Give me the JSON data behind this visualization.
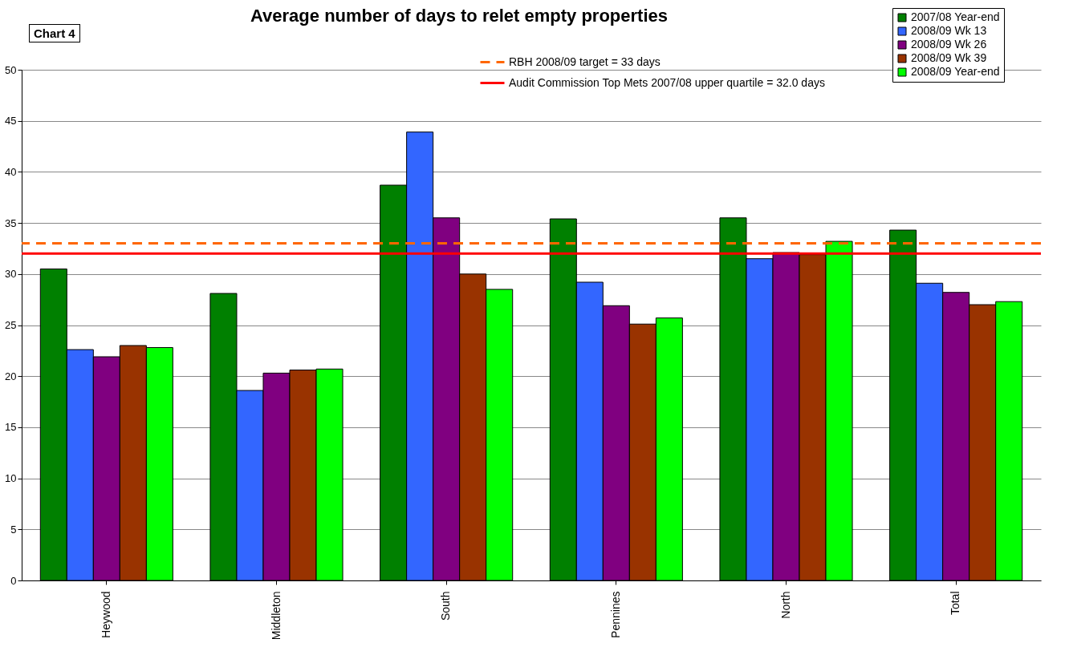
{
  "chart_data": {
    "type": "bar",
    "title": "Average number of days to relet empty properties",
    "annotations": [
      "Chart 4"
    ],
    "categories": [
      "Heywood",
      "Middleton",
      "South",
      "Pennines",
      "North",
      "Total"
    ],
    "series": [
      {
        "name": "2007/08 Year-end",
        "color": "#008000",
        "values": [
          30.5,
          28.1,
          38.7,
          35.4,
          35.5,
          34.3
        ]
      },
      {
        "name": "2008/09 Wk 13",
        "color": "#3366ff",
        "values": [
          22.6,
          18.6,
          43.9,
          29.2,
          31.5,
          29.1
        ]
      },
      {
        "name": "2008/09 Wk 26",
        "color": "#800080",
        "values": [
          21.9,
          20.3,
          35.5,
          26.9,
          32.1,
          28.2
        ]
      },
      {
        "name": "2008/09 Wk 39",
        "color": "#993300",
        "values": [
          23.0,
          20.6,
          30.0,
          25.1,
          31.9,
          27.0
        ]
      },
      {
        "name": "2008/09 Year-end",
        "color": "#00ff00",
        "values": [
          22.8,
          20.7,
          28.5,
          25.7,
          33.2,
          27.3
        ]
      }
    ],
    "ylim": [
      0,
      50
    ],
    "yticks": [
      0,
      5,
      10,
      15,
      20,
      25,
      30,
      35,
      40,
      45,
      50
    ],
    "grid": "y",
    "legend": "top right",
    "ref_lines": [
      {
        "axis": "y",
        "value": 33,
        "label": "RBH 2008/09 target = 33 days",
        "color": "#ff6600",
        "line_style": "dashed"
      },
      {
        "axis": "y",
        "value": 32.0,
        "label": "Audit Commission Top Mets 2007/08 upper quartile = 32.0 days",
        "color": "#ff0000",
        "line_style": "solid"
      }
    ]
  }
}
